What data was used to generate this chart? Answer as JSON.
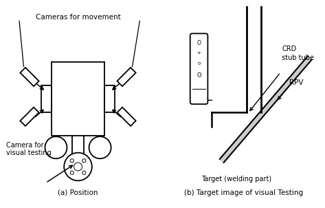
{
  "bg_color": "#ffffff",
  "line_color": "#000000",
  "label_a": "(a) Position",
  "label_b": "(b) Target image of visual Testing",
  "text_cameras_movement": "Cameras for movement",
  "text_camera_visual": "Camera for\nvisual testing",
  "text_crd": "CRD\nstub tube",
  "text_rpv": "RPV",
  "text_target": "Target (welding part)"
}
